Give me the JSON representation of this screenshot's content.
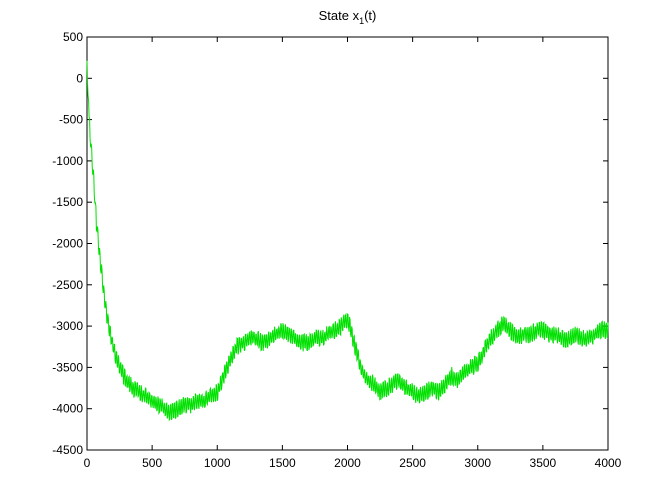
{
  "chart_data": {
    "type": "line",
    "title": "State x",
    "title_subscript": "1",
    "title_suffix": "(t)",
    "xlabel": "",
    "ylabel": "",
    "xlim": [
      0,
      4000
    ],
    "ylim": [
      -4500,
      500
    ],
    "xticks": [
      0,
      500,
      1000,
      1500,
      2000,
      2500,
      3000,
      3500,
      4000
    ],
    "yticks": [
      500,
      0,
      -500,
      -1000,
      -1500,
      -2000,
      -2500,
      -3000,
      -3500,
      -4000,
      -4500
    ],
    "grid": false,
    "legend": "none",
    "series": [
      {
        "color": "#00e000",
        "oscillation": 180,
        "x": [
          0,
          10,
          30,
          50,
          70,
          100,
          130,
          160,
          200,
          250,
          300,
          350,
          400,
          450,
          500,
          550,
          600,
          650,
          700,
          750,
          800,
          850,
          900,
          950,
          1000,
          1050,
          1100,
          1150,
          1200,
          1250,
          1300,
          1350,
          1400,
          1450,
          1500,
          1550,
          1600,
          1650,
          1700,
          1750,
          1800,
          1850,
          1900,
          1950,
          2000,
          2050,
          2100,
          2150,
          2200,
          2250,
          2300,
          2350,
          2400,
          2450,
          2500,
          2550,
          2600,
          2650,
          2700,
          2750,
          2800,
          2850,
          2900,
          2950,
          3000,
          3050,
          3100,
          3150,
          3200,
          3250,
          3300,
          3350,
          3400,
          3450,
          3500,
          3550,
          3600,
          3650,
          3700,
          3750,
          3800,
          3850,
          3900,
          3950,
          4000
        ],
        "y": [
          200,
          -300,
          -800,
          -1200,
          -1700,
          -2200,
          -2600,
          -2950,
          -3250,
          -3500,
          -3650,
          -3750,
          -3800,
          -3850,
          -3900,
          -3950,
          -4000,
          -4050,
          -4000,
          -3950,
          -3950,
          -3900,
          -3900,
          -3850,
          -3800,
          -3600,
          -3400,
          -3250,
          -3200,
          -3150,
          -3150,
          -3200,
          -3150,
          -3100,
          -3050,
          -3100,
          -3150,
          -3200,
          -3200,
          -3150,
          -3150,
          -3100,
          -3050,
          -3000,
          -2900,
          -3200,
          -3500,
          -3650,
          -3700,
          -3800,
          -3750,
          -3700,
          -3650,
          -3750,
          -3800,
          -3850,
          -3800,
          -3750,
          -3800,
          -3700,
          -3600,
          -3650,
          -3550,
          -3500,
          -3450,
          -3300,
          -3150,
          -3050,
          -2950,
          -3050,
          -3150,
          -3100,
          -3100,
          -3050,
          -3050,
          -3100,
          -3100,
          -3150,
          -3150,
          -3100,
          -3150,
          -3150,
          -3100,
          -3050,
          -3050
        ]
      }
    ]
  }
}
